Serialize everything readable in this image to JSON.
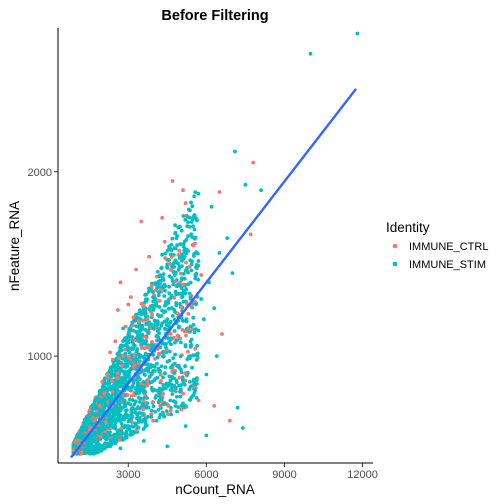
{
  "chart_data": {
    "type": "scatter",
    "title": "Before Filtering",
    "xlabel": "nCount_RNA",
    "ylabel": "nFeature_RNA",
    "xlim": [
      300,
      12400
    ],
    "ylim": [
      420,
      2780
    ],
    "x_ticks": [
      3000,
      6000,
      9000,
      12000
    ],
    "y_ticks": [
      1000,
      2000
    ],
    "x_tick_labels": [
      "3000",
      "6000",
      "9000",
      "12000"
    ],
    "y_tick_labels": [
      "1000",
      "2000"
    ],
    "grid": false,
    "legend": {
      "title": "Identity",
      "placement": "right",
      "entries": [
        "IMMUNE_CTRL",
        "IMMUNE_STIM"
      ]
    },
    "series": [
      {
        "name": "IMMUNE_CTRL",
        "color": "#F8766D",
        "points": [
          [
            7800,
            2050
          ],
          [
            7700,
            1660
          ],
          [
            6500,
            1890
          ],
          [
            4700,
            1950
          ],
          [
            5100,
            1900
          ],
          [
            4300,
            1750
          ],
          [
            3500,
            1730
          ],
          [
            5200,
            1830
          ],
          [
            2600,
            1250
          ],
          [
            3300,
            1470
          ],
          [
            4600,
            1500
          ],
          [
            3900,
            1380
          ],
          [
            4200,
            1300
          ],
          [
            3600,
            1270
          ],
          [
            4400,
            1620
          ],
          [
            3100,
            1320
          ],
          [
            2700,
            1400
          ],
          [
            5000,
            1400
          ],
          [
            2900,
            1160
          ],
          [
            3800,
            1540
          ],
          [
            4900,
            1230
          ],
          [
            3400,
            1190
          ],
          [
            2500,
            1080
          ],
          [
            2800,
            1000
          ],
          [
            3000,
            1280
          ],
          [
            4100,
            1060
          ],
          [
            5700,
            760
          ],
          [
            6300,
            730
          ],
          [
            6900,
            650
          ],
          [
            5500,
            1600
          ],
          [
            2200,
            900
          ],
          [
            2400,
            980
          ],
          [
            3700,
            1100
          ],
          [
            3200,
            1210
          ],
          [
            4500,
            1120
          ],
          [
            2100,
            800
          ],
          [
            1900,
            730
          ],
          [
            1700,
            650
          ],
          [
            1500,
            600
          ],
          [
            1300,
            560
          ],
          [
            1100,
            520
          ],
          [
            900,
            490
          ],
          [
            1200,
            470
          ],
          [
            1800,
            700
          ],
          [
            2000,
            860
          ],
          [
            2300,
            1020
          ],
          [
            2600,
            880
          ],
          [
            3400,
            960
          ],
          [
            5800,
            1440
          ],
          [
            6600,
            1120
          ]
        ]
      },
      {
        "name": "IMMUNE_STIM",
        "color": "#00BFC4",
        "points": [
          [
            11800,
            2750
          ],
          [
            10000,
            2640
          ],
          [
            7100,
            2110
          ],
          [
            7500,
            1930
          ],
          [
            8100,
            1900
          ],
          [
            6200,
            1810
          ],
          [
            6100,
            1400
          ],
          [
            6800,
            1640
          ],
          [
            7000,
            1450
          ],
          [
            6500,
            1560
          ],
          [
            5800,
            1310
          ],
          [
            5600,
            1480
          ],
          [
            4800,
            1710
          ],
          [
            4300,
            1550
          ],
          [
            5100,
            1340
          ],
          [
            4600,
            1180
          ],
          [
            3900,
            1270
          ],
          [
            3500,
            1090
          ],
          [
            3100,
            960
          ],
          [
            2800,
            1150
          ],
          [
            2500,
            870
          ],
          [
            2200,
            790
          ],
          [
            1900,
            700
          ],
          [
            1600,
            630
          ],
          [
            1300,
            560
          ],
          [
            1000,
            500
          ],
          [
            900,
            470
          ],
          [
            1400,
            520
          ],
          [
            2000,
            600
          ],
          [
            2600,
            680
          ],
          [
            3300,
            800
          ],
          [
            4000,
            870
          ],
          [
            4700,
            950
          ],
          [
            5400,
            1050
          ],
          [
            3700,
            720
          ],
          [
            3000,
            620
          ],
          [
            4400,
            740
          ],
          [
            5000,
            780
          ],
          [
            6000,
            900
          ],
          [
            6400,
            1000
          ],
          [
            7200,
            720
          ],
          [
            7400,
            610
          ],
          [
            6000,
            570
          ],
          [
            5200,
            620
          ],
          [
            4500,
            510
          ],
          [
            3600,
            540
          ],
          [
            2700,
            500
          ],
          [
            5900,
            1200
          ],
          [
            6300,
            1260
          ],
          [
            5300,
            1570
          ]
        ]
      }
    ],
    "trend_line": {
      "color": "#3366FF",
      "x": [
        800,
        11750
      ],
      "y": [
        450,
        2450
      ]
    }
  }
}
